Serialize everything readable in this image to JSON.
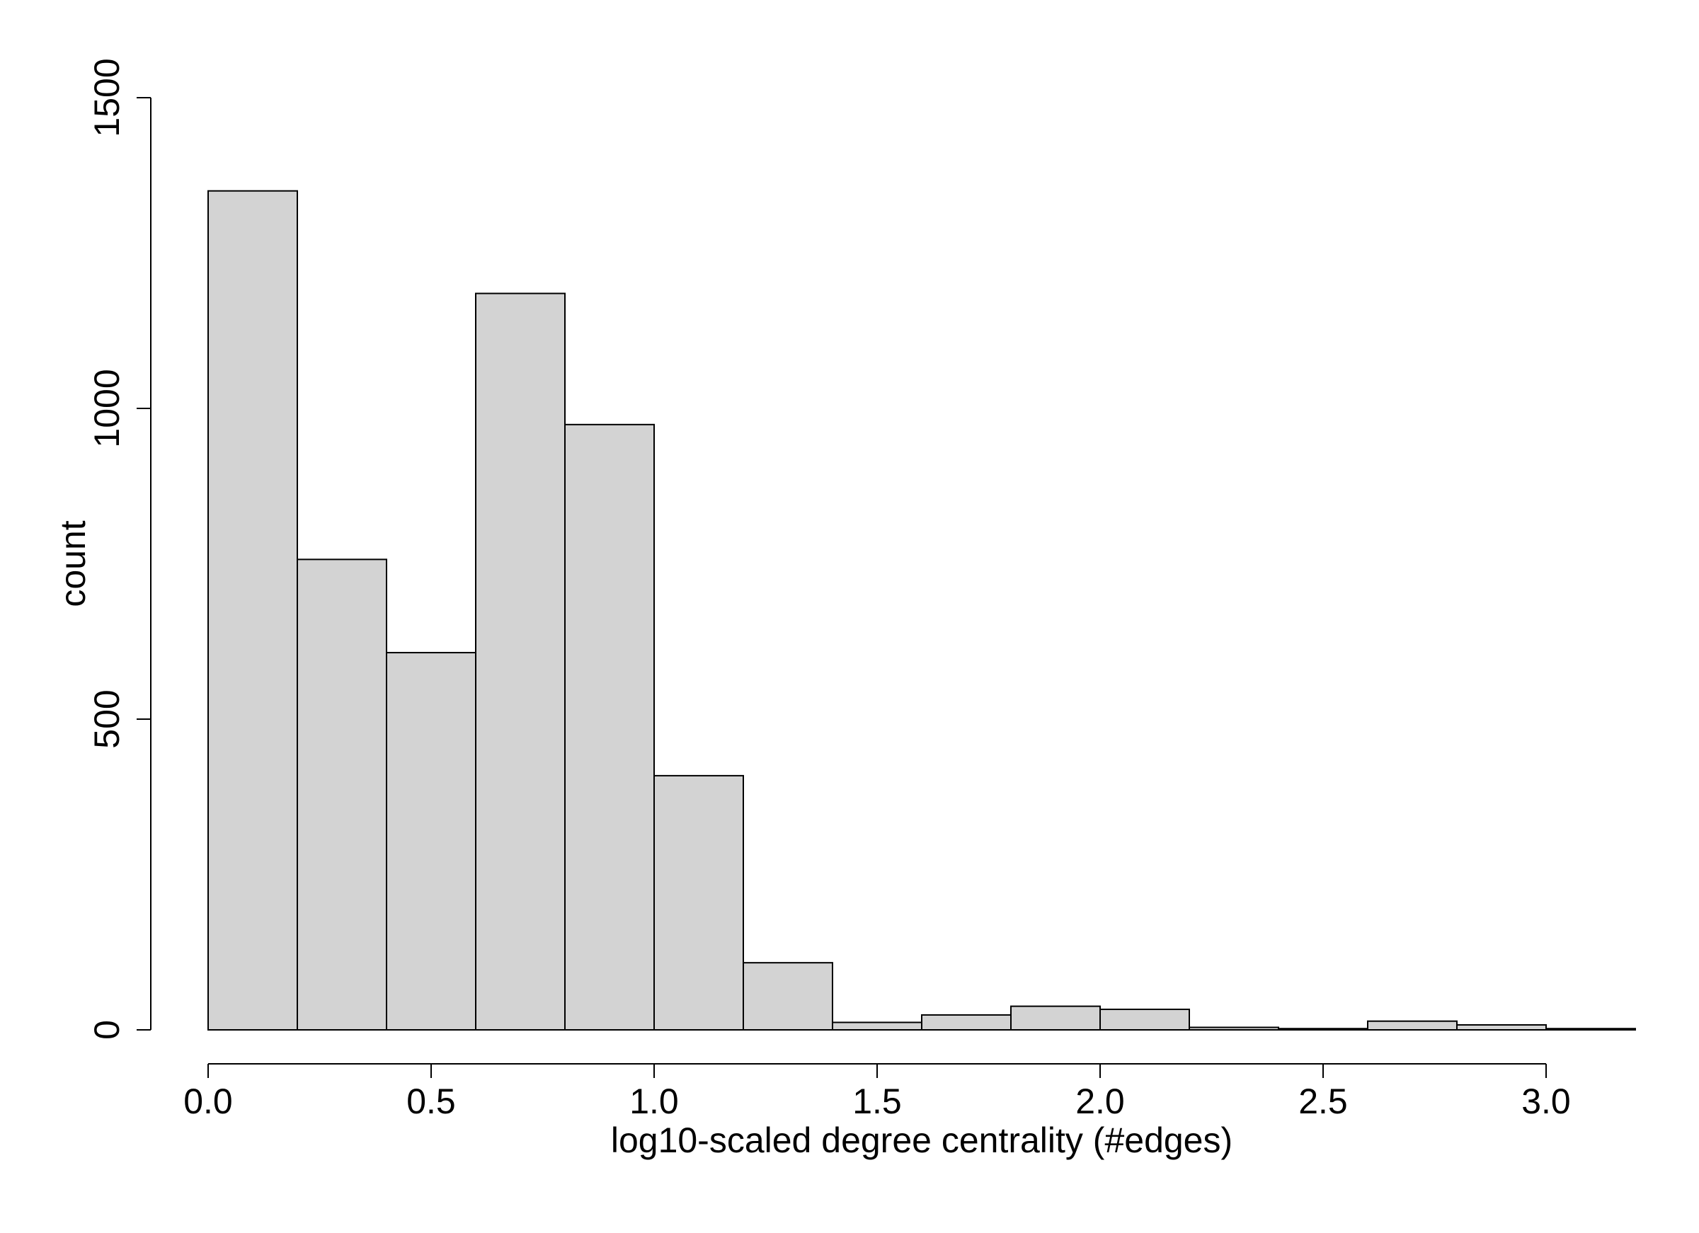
{
  "chart_data": {
    "type": "bar",
    "subtype": "histogram",
    "bin_width": 0.2,
    "bins": [
      {
        "x0": 0.0,
        "x1": 0.2,
        "count": 1350
      },
      {
        "x0": 0.2,
        "x1": 0.4,
        "count": 757
      },
      {
        "x0": 0.4,
        "x1": 0.6,
        "count": 607
      },
      {
        "x0": 0.6,
        "x1": 0.8,
        "count": 1185
      },
      {
        "x0": 0.8,
        "x1": 1.0,
        "count": 974
      },
      {
        "x0": 1.0,
        "x1": 1.2,
        "count": 409
      },
      {
        "x0": 1.2,
        "x1": 1.4,
        "count": 108
      },
      {
        "x0": 1.4,
        "x1": 1.6,
        "count": 12
      },
      {
        "x0": 1.6,
        "x1": 1.8,
        "count": 24
      },
      {
        "x0": 1.8,
        "x1": 2.0,
        "count": 38
      },
      {
        "x0": 2.0,
        "x1": 2.2,
        "count": 33
      },
      {
        "x0": 2.2,
        "x1": 2.4,
        "count": 4
      },
      {
        "x0": 2.4,
        "x1": 2.6,
        "count": 2
      },
      {
        "x0": 2.6,
        "x1": 2.8,
        "count": 14
      },
      {
        "x0": 2.8,
        "x1": 3.0,
        "count": 8
      },
      {
        "x0": 3.0,
        "x1": 3.2,
        "count": 2
      }
    ],
    "title": "",
    "xlabel": "log10-scaled degree centrality (#edges)",
    "ylabel": "count",
    "xlim": [
      0.0,
      3.2
    ],
    "ylim": [
      0,
      1500
    ],
    "xticks": [
      "0.0",
      "0.5",
      "1.0",
      "1.5",
      "2.0",
      "2.5",
      "3.0"
    ],
    "yticks": [
      "0",
      "500",
      "1000",
      "1500"
    ],
    "grid": false,
    "legend": "none",
    "colors": {
      "bar_fill": "#d3d3d3",
      "bar_stroke": "#000000",
      "axis": "#000000"
    }
  }
}
